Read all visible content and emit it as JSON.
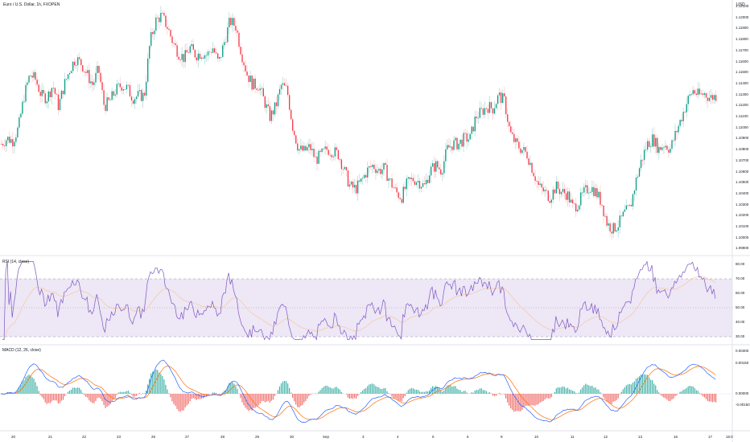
{
  "header": {
    "symbol_title": "Euro / U.S. Dollar, 1h, FXOPEN",
    "currency": "USD"
  },
  "price_axis": [
    "1.12100",
    "1.12000",
    "1.11900",
    "1.11800",
    "1.11700",
    "1.11600",
    "1.11500",
    "1.11400",
    "1.11300",
    "1.11200",
    "1.11100",
    "1.11000",
    "1.10900",
    "1.10800",
    "1.10700",
    "1.10600",
    "1.10500",
    "1.10400",
    "1.10300",
    "1.10200",
    "1.10100",
    "1.10000",
    "1.09900"
  ],
  "rsi": {
    "label": "RSI (14, close)",
    "axis": [
      "80.00",
      "70.00",
      "60.00",
      "50.00",
      "40.00",
      "30.00"
    ],
    "upper": 70,
    "lower": 30
  },
  "macd": {
    "label": "MACD (12, 26, close)",
    "axis": [
      "0.00300",
      "0.00150",
      "0.00000",
      "-0.00150"
    ],
    "last_axis": "-0.00150"
  },
  "time_axis": [
    "20",
    "21",
    "22",
    "23",
    "26",
    "27",
    "28",
    "29",
    "30",
    "Sep",
    "3",
    "4",
    "5",
    "6",
    "9",
    "10",
    "11",
    "12",
    "13",
    "16",
    "17"
  ],
  "time_label": "15:0",
  "colors": {
    "up": "#089981",
    "down": "#f23645",
    "rsi_line": "#7e57c2",
    "rsi_band": "#ede7f6",
    "macd_line": "#2962ff",
    "signal_line": "#ff6d00",
    "hist_up": "#26a69a",
    "hist_up_light": "#b2dfdb",
    "hist_down": "#ef5350",
    "hist_down_light": "#ffcdd2"
  },
  "chart_data": {
    "type": "candlestick",
    "title": "Euro / U.S. Dollar, 1h, FXOPEN",
    "ylim": [
      1.0985,
      1.1215
    ],
    "close_path": [
      1.1085,
      1.109,
      1.1088,
      1.11,
      1.113,
      1.115,
      1.1145,
      1.113,
      1.1128,
      1.114,
      1.112,
      1.114,
      1.1155,
      1.1165,
      1.116,
      1.115,
      1.114,
      1.1155,
      1.112,
      1.1125,
      1.1135,
      1.114,
      1.1137,
      1.1128,
      1.113,
      1.113,
      1.118,
      1.12,
      1.1205,
      1.1195,
      1.118,
      1.117,
      1.1165,
      1.1175,
      1.1168,
      1.117,
      1.1168,
      1.1175,
      1.116,
      1.118,
      1.12,
      1.1195,
      1.117,
      1.115,
      1.114,
      1.114,
      1.1125,
      1.111,
      1.112,
      1.114,
      1.1135,
      1.11,
      1.108,
      1.1078,
      1.1082,
      1.107,
      1.1075,
      1.108,
      1.1078,
      1.1075,
      1.106,
      1.1045,
      1.1043,
      1.105,
      1.106,
      1.1065,
      1.106,
      1.1062,
      1.105,
      1.104,
      1.1035,
      1.1048,
      1.1052,
      1.105,
      1.1045,
      1.106,
      1.1065,
      1.106,
      1.108,
      1.1085,
      1.1085,
      1.109,
      1.109,
      1.111,
      1.1115,
      1.112,
      1.1118,
      1.113,
      1.1125,
      1.1095,
      1.1085,
      1.108,
      1.1075,
      1.106,
      1.1045,
      1.104,
      1.1035,
      1.1045,
      1.104,
      1.1038,
      1.1025,
      1.103,
      1.104,
      1.1045,
      1.104,
      1.103,
      1.101,
      1.1005,
      1.101,
      1.102,
      1.1025,
      1.105,
      1.107,
      1.1085,
      1.109,
      1.108,
      1.1085,
      1.108,
      1.1095,
      1.111,
      1.1125,
      1.1135,
      1.113,
      1.1132,
      1.1128,
      1.113
    ]
  }
}
